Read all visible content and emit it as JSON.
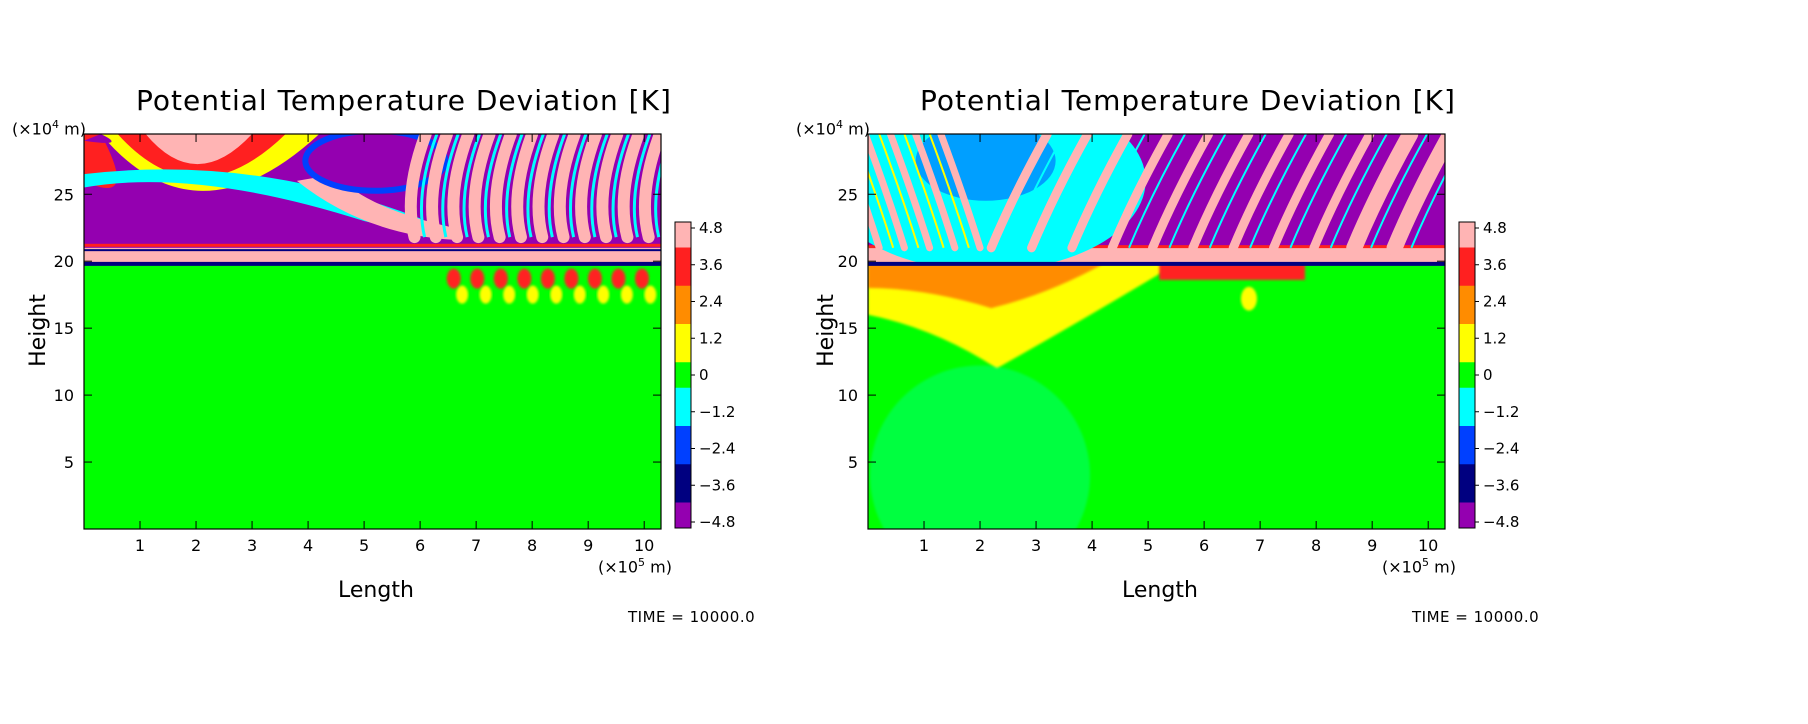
{
  "chart_data": [
    {
      "type": "heatmap",
      "title": "Potential Temperature Deviation [K]",
      "xlabel": "Length",
      "ylabel": "Height",
      "x_unit_prefix": "(×10",
      "x_unit_exp": "5",
      "x_unit_suffix": " m)",
      "y_unit_prefix": "(×10",
      "y_unit_exp": "4",
      "y_unit_suffix": " m)",
      "xlim": [
        0,
        10.3
      ],
      "ylim": [
        0,
        29.5
      ],
      "x_ticks": [
        "1",
        "2",
        "3",
        "4",
        "5",
        "6",
        "7",
        "8",
        "9",
        "10"
      ],
      "y_ticks": [
        "5",
        "10",
        "15",
        "20",
        "25"
      ],
      "colorbar_ticks": [
        "4.8",
        "3.6",
        "2.4",
        "1.2",
        "0",
        "−1.2",
        "−2.4",
        "−3.6",
        "−4.8"
      ],
      "colorbar_range": [
        -4.8,
        4.8
      ],
      "time_label": "TIME = 10000.0"
    },
    {
      "type": "heatmap",
      "title": "Potential Temperature Deviation [K]",
      "xlabel": "Length",
      "ylabel": "Height",
      "x_unit_prefix": "(×10",
      "x_unit_exp": "5",
      "x_unit_suffix": " m)",
      "y_unit_prefix": "(×10",
      "y_unit_exp": "4",
      "y_unit_suffix": " m)",
      "xlim": [
        0,
        10.3
      ],
      "ylim": [
        0,
        29.5
      ],
      "x_ticks": [
        "1",
        "2",
        "3",
        "4",
        "5",
        "6",
        "7",
        "8",
        "9",
        "10"
      ],
      "y_ticks": [
        "5",
        "10",
        "15",
        "20",
        "25"
      ],
      "colorbar_ticks": [
        "4.8",
        "3.6",
        "2.4",
        "1.2",
        "0",
        "−1.2",
        "−2.4",
        "−3.6",
        "−4.8"
      ],
      "colorbar_range": [
        -4.8,
        4.8
      ],
      "time_label": "TIME = 10000.0"
    }
  ],
  "colors": {
    "pink": "#ffb4b4",
    "red": "#ff2020",
    "orange": "#ff8c00",
    "yellow": "#ffff00",
    "green": "#00ff00",
    "cyan": "#00ffff",
    "blue": "#0040ff",
    "navy": "#000080",
    "purple": "#9400b0"
  }
}
